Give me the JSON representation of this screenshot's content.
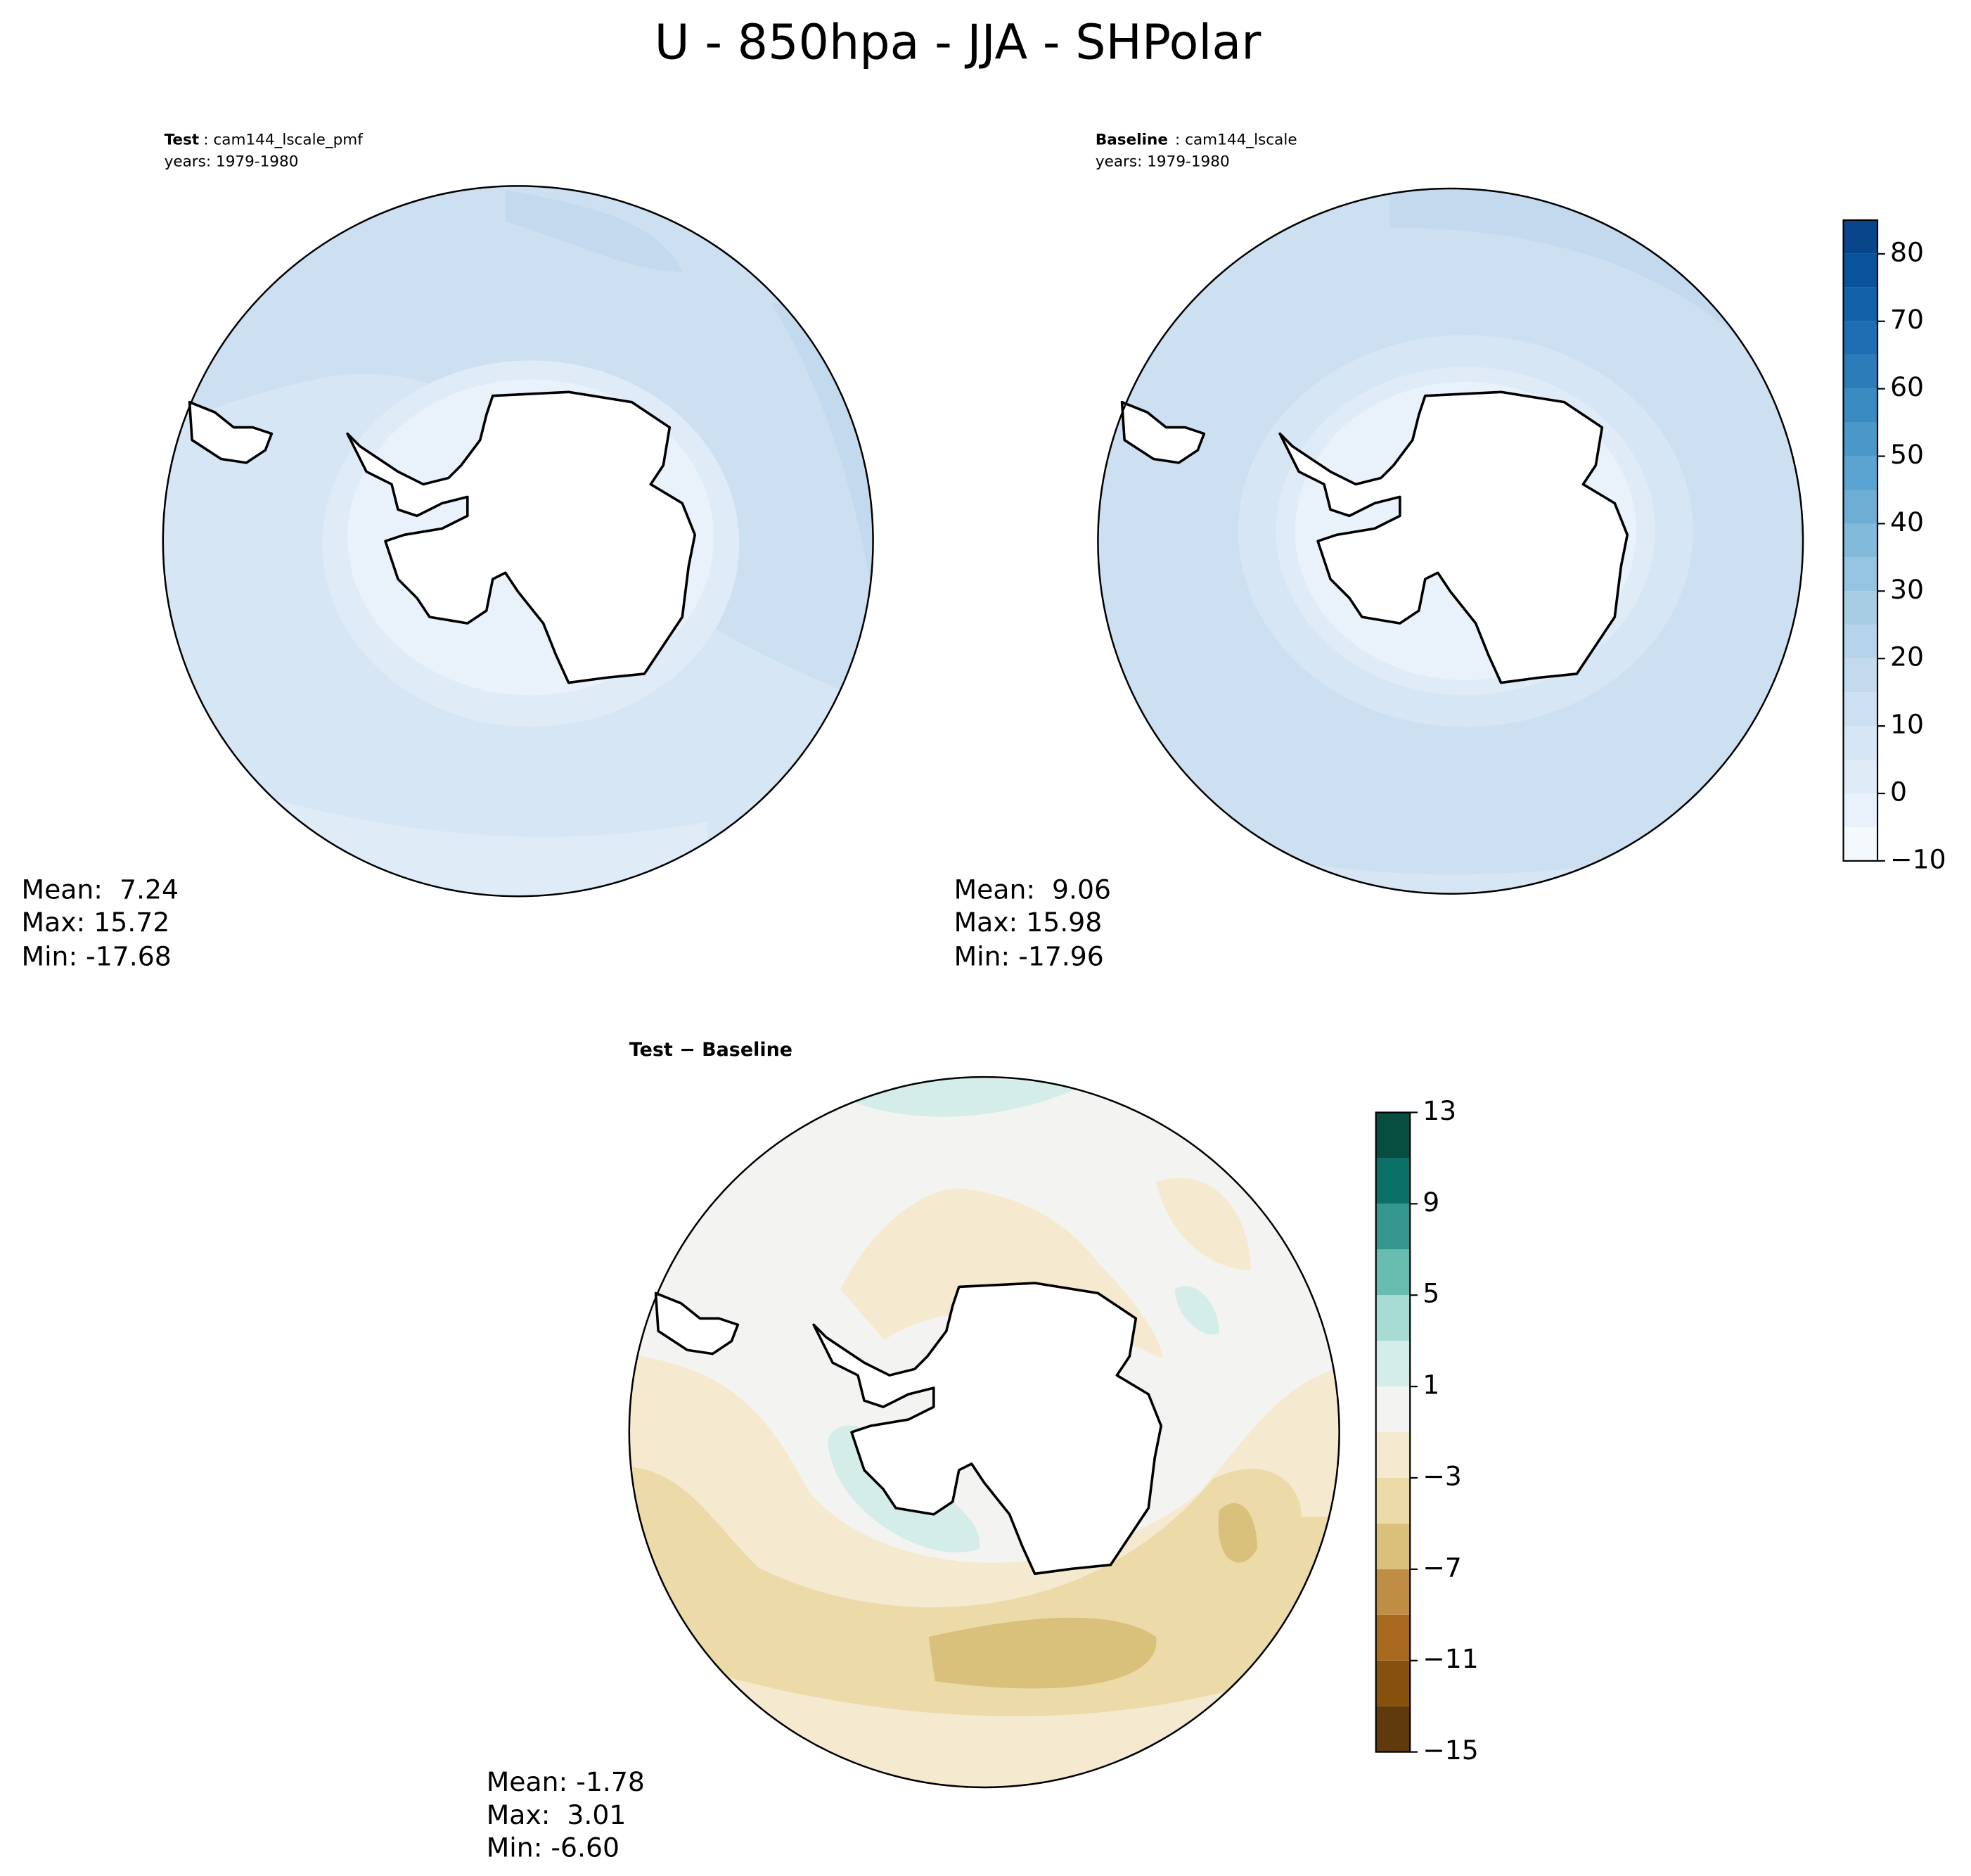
{
  "title": "U - 850hpa - JJA - SHPolar",
  "panels": [
    {
      "label": "Test",
      "case": ": cam144_lscale_pmf",
      "years": "years: 1979-1980",
      "stats": [
        "Mean:  7.24",
        "Max: 15.72",
        "Min: -17.68"
      ]
    },
    {
      "label": "Baseline",
      "case": ": cam144_lscale",
      "years": "years: 1979-1980",
      "stats": [
        "Mean:  9.06",
        "Max: 15.98",
        "Min: -17.96"
      ]
    },
    {
      "label": "Test − Baseline",
      "stats": [
        "Mean: -1.78",
        "Max:  3.01",
        "Min: -6.60"
      ]
    }
  ],
  "colorbars": [
    {
      "levels": [
        -10,
        -5,
        0,
        5,
        10,
        15,
        20,
        25,
        30,
        35,
        40,
        45,
        50,
        55,
        60,
        65,
        70,
        75,
        80,
        85
      ],
      "colors": [
        "#f4f9fe",
        "#e9f2fb",
        "#dfebf7",
        "#d6e6f4",
        "#cde0f1",
        "#c2d9ee",
        "#b6d4e9",
        "#a6cde4",
        "#94c4df",
        "#82badb",
        "#6eaed5",
        "#5ba3d0",
        "#4a97c9",
        "#3a8ac2",
        "#2c7cba",
        "#1f6eb3",
        "#1361a9",
        "#09539d",
        "#08458a"
      ],
      "ticks": [
        {
          "value": -10,
          "label": "−10"
        },
        0,
        10,
        20,
        30,
        40,
        50,
        60,
        70,
        80
      ]
    },
    {
      "levels": [
        -15,
        -13,
        -11,
        -9,
        -7,
        -5,
        -3,
        -1,
        1,
        3,
        5,
        7,
        9,
        11,
        13
      ],
      "colors": [
        "#5e3a0c",
        "#86510d",
        "#a6691e",
        "#c08d45",
        "#d9c07b",
        "#ecdba9",
        "#f5ead0",
        "#f3f4f2",
        "#d4ede8",
        "#a6dcd3",
        "#69bcb0",
        "#35968d",
        "#0b7068",
        "#074d40"
      ],
      "ticks": [
        {
          "value": -15,
          "label": "−15"
        },
        {
          "value": -11,
          "label": "−11"
        },
        {
          "value": -7,
          "label": "−7"
        },
        {
          "value": -3,
          "label": "−3"
        },
        1,
        5,
        9,
        13
      ]
    }
  ]
}
